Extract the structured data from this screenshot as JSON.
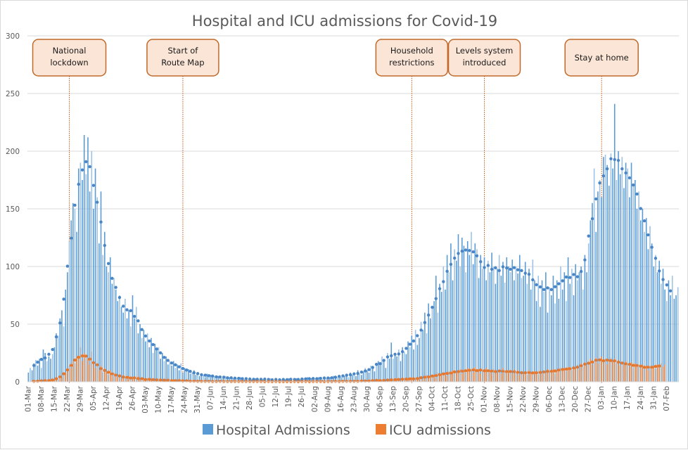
{
  "chart_data": {
    "type": "bar",
    "title": "Hospital and ICU admissions for Covid-19",
    "xlabel": "",
    "ylabel": "",
    "ylim": [
      0,
      300
    ],
    "yticks": [
      0,
      50,
      100,
      150,
      200,
      250,
      300
    ],
    "grid": true,
    "legend_position": "bottom",
    "start_date": "01-Mar",
    "x_tick_labels": [
      "01-Mar",
      "08-Mar",
      "15-Mar",
      "22-Mar",
      "29-Mar",
      "05-Apr",
      "12-Apr",
      "19-Apr",
      "26-Apr",
      "03-May",
      "10-May",
      "17-May",
      "24-May",
      "31-May",
      "07-Jun",
      "14-Jun",
      "21-Jun",
      "28-Jun",
      "05-Jul",
      "12-Jul",
      "19-Jul",
      "26-Jul",
      "02-Aug",
      "09-Aug",
      "16-Aug",
      "23-Aug",
      "30-Aug",
      "06-Sep",
      "13-Sep",
      "20-Sep",
      "27-Sep",
      "04-Oct",
      "11-Oct",
      "18-Oct",
      "25-Oct",
      "01-Nov",
      "08-Nov",
      "15-Nov",
      "22-Nov",
      "29-Nov",
      "06-Dec",
      "13-Dec",
      "20-Dec",
      "27-Dec",
      "03-Jan",
      "10-Jan",
      "17-Jan",
      "24-Jan",
      "31-Jan",
      "07-Feb"
    ],
    "series": [
      {
        "name": "Hospital Admissions",
        "color": "#5B9BD5",
        "trendline": "7-day moving average (dotted)",
        "values": [
          8,
          12,
          10,
          16,
          19,
          14,
          20,
          12,
          28,
          25,
          18,
          22,
          20,
          24,
          30,
          42,
          40,
          55,
          62,
          48,
          80,
          95,
          122,
          140,
          155,
          150,
          130,
          185,
          190,
          175,
          214,
          180,
          212,
          165,
          200,
          150,
          185,
          160,
          120,
          165,
          110,
          130,
          100,
          95,
          108,
          85,
          90,
          80,
          70,
          75,
          65,
          60,
          72,
          55,
          62,
          48,
          75,
          55,
          65,
          42,
          50,
          38,
          45,
          35,
          42,
          30,
          38,
          25,
          33,
          28,
          30,
          20,
          25,
          18,
          22,
          15,
          18,
          14,
          18,
          12,
          15,
          10,
          16,
          8,
          12,
          9,
          11,
          7,
          8,
          10,
          6,
          8,
          5,
          7,
          6,
          4,
          7,
          5,
          6,
          4,
          5,
          3,
          5,
          4,
          3,
          4,
          5,
          3,
          4,
          2,
          3,
          4,
          3,
          2,
          4,
          3,
          2,
          3,
          2,
          3,
          2,
          2,
          3,
          1,
          2,
          3,
          2,
          3,
          1,
          2,
          3,
          2,
          1,
          2,
          1,
          3,
          2,
          1,
          2,
          2,
          3,
          2,
          1,
          2,
          3,
          1,
          2,
          2,
          3,
          2,
          4,
          2,
          3,
          2,
          3,
          2,
          4,
          3,
          2,
          4,
          3,
          3,
          4,
          2,
          5,
          3,
          4,
          6,
          4,
          6,
          5,
          7,
          4,
          8,
          6,
          8,
          5,
          10,
          7,
          6,
          9,
          12,
          10,
          8,
          14,
          12,
          9,
          16,
          18,
          15,
          22,
          18,
          12,
          25,
          20,
          34,
          20,
          25,
          22,
          28,
          18,
          30,
          26,
          24,
          35,
          30,
          40,
          28,
          45,
          32,
          38,
          52,
          45,
          60,
          42,
          68,
          55,
          65,
          70,
          92,
          60,
          85,
          78,
          100,
          80,
          110,
          95,
          120,
          88,
          115,
          105,
          128,
          100,
          125,
          118,
          95,
          122,
          110,
          130,
          102,
          120,
          115,
          90,
          110,
          98,
          108,
          88,
          105,
          95,
          112,
          100,
          85,
          98,
          110,
          92,
          104,
          86,
          108,
          100,
          95,
          106,
          88,
          100,
          94,
          110,
          90,
          92,
          104,
          85,
          98,
          80,
          106,
          88,
          70,
          92,
          65,
          88,
          78,
          95,
          60,
          82,
          75,
          92,
          68,
          88,
          72,
          100,
          80,
          95,
          70,
          108,
          85,
          98,
          75,
          102,
          88,
          95,
          100,
          80,
          110,
          95,
          120,
          140,
          155,
          185,
          130,
          165,
          175,
          160,
          195,
          197,
          188,
          170,
          198,
          185,
          241,
          175,
          200,
          180,
          195,
          168,
          190,
          185,
          160,
          190,
          170,
          175,
          150,
          165,
          140,
          150,
          130,
          142,
          115,
          135,
          120,
          100,
          110,
          95,
          105,
          85,
          98,
          80,
          70,
          88,
          75,
          92,
          72,
          75,
          82
        ]
      },
      {
        "name": "ICU admissions",
        "color": "#ED7D31",
        "trendline": "7-day moving average (dotted)",
        "values": [
          0,
          0,
          1,
          0,
          1,
          0,
          1,
          1,
          0,
          2,
          1,
          0,
          2,
          1,
          2,
          3,
          2,
          5,
          4,
          6,
          8,
          10,
          14,
          12,
          18,
          16,
          22,
          20,
          30,
          18,
          25,
          22,
          20,
          15,
          26,
          18,
          12,
          15,
          10,
          14,
          8,
          12,
          9,
          6,
          10,
          5,
          8,
          6,
          4,
          5,
          3,
          6,
          4,
          2,
          5,
          3,
          4,
          2,
          3,
          5,
          2,
          1,
          3,
          2,
          3,
          1,
          2,
          3,
          1,
          2,
          1,
          2,
          1,
          3,
          1,
          2,
          0,
          1,
          2,
          1,
          0,
          1,
          2,
          1,
          0,
          1,
          1,
          0,
          1,
          0,
          1,
          0,
          1,
          0,
          0,
          1,
          0,
          1,
          0,
          0,
          1,
          0,
          0,
          1,
          0,
          0,
          1,
          0,
          0,
          0,
          1,
          0,
          0,
          0,
          1,
          0,
          0,
          0,
          1,
          0,
          0,
          0,
          1,
          0,
          0,
          0,
          1,
          0,
          0,
          0,
          0,
          1,
          0,
          0,
          0,
          1,
          0,
          0,
          0,
          0,
          0,
          1,
          0,
          0,
          0,
          0,
          1,
          0,
          0,
          0,
          1,
          0,
          0,
          0,
          0,
          1,
          0,
          0,
          1,
          0,
          0,
          0,
          0,
          1,
          0,
          0,
          1,
          0,
          1,
          0,
          0,
          1,
          0,
          1,
          0,
          0,
          1,
          1,
          0,
          1,
          0,
          1,
          1,
          0,
          2,
          1,
          0,
          1,
          2,
          1,
          2,
          1,
          0,
          2,
          1,
          3,
          2,
          1,
          3,
          2,
          1,
          2,
          3,
          2,
          3,
          2,
          4,
          1,
          3,
          2,
          3,
          5,
          2,
          4,
          6,
          3,
          5,
          4,
          6,
          3,
          8,
          5,
          7,
          6,
          8,
          5,
          9,
          6,
          10,
          7,
          8,
          9,
          11,
          7,
          10,
          8,
          12,
          9,
          10,
          8,
          13,
          9,
          11,
          7,
          10,
          9,
          12,
          8,
          10,
          7,
          11,
          9,
          8,
          10,
          7,
          12,
          9,
          8,
          10,
          9,
          7,
          11,
          8,
          10,
          6,
          9,
          7,
          9,
          6,
          10,
          8,
          7,
          9,
          8,
          6,
          10,
          7,
          9,
          8,
          11,
          9,
          8,
          11,
          7,
          10,
          9,
          12,
          10,
          12,
          9,
          13,
          11,
          10,
          12,
          12,
          15,
          11,
          16,
          13,
          17,
          14,
          16,
          20,
          15,
          18,
          21,
          16,
          19,
          22,
          17,
          20,
          15,
          19,
          21,
          18,
          20,
          16,
          19,
          14,
          17,
          15,
          18,
          15,
          13,
          17,
          12,
          16,
          14,
          13,
          12,
          15,
          11,
          14,
          10,
          13,
          12,
          14,
          11,
          15,
          12,
          16,
          13,
          15
        ]
      }
    ],
    "annotations": [
      {
        "label_lines": [
          "National",
          "lockdown"
        ],
        "date": "23-Mar"
      },
      {
        "label_lines": [
          "Start of",
          "Route Map"
        ],
        "date": "23-May"
      },
      {
        "label_lines": [
          "Household",
          "restrictions"
        ],
        "date": "23-Sep"
      },
      {
        "label_lines": [
          "Levels system",
          "introduced"
        ],
        "date": "01-Nov"
      },
      {
        "label_lines": [
          "Stay at home"
        ],
        "date": "03-Jan"
      }
    ],
    "annotation_day_index": [
      22,
      83,
      206,
      245,
      308
    ],
    "legend": [
      {
        "label": "Hospital Admissions",
        "color": "#5B9BD5"
      },
      {
        "label": "ICU admissions",
        "color": "#ED7D31"
      }
    ]
  }
}
